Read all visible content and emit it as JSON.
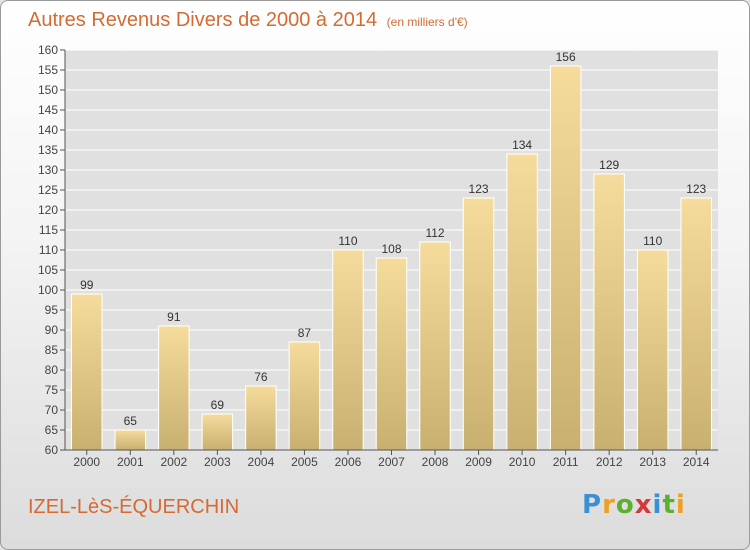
{
  "header": {
    "title": "Autres Revenus Divers de 2000 à 2014",
    "unit": "(en milliers d'€)"
  },
  "footer": {
    "commune": "IZEL-LèS-ÉQUERCHIN",
    "logo_text": "Proxiti",
    "logo_colors": [
      "#3a8fd6",
      "#f0a020",
      "#5cb030",
      "#d53a3a",
      "#3a8fd6",
      "#5cb030",
      "#f0a020"
    ]
  },
  "colors": {
    "bar_light": "#f6dc9c",
    "bar_dark": "#c8b070",
    "plot_bg": "#e0e0e0",
    "grid": "#ffffff",
    "accent": "#d56a33"
  },
  "chart_data": {
    "type": "bar",
    "title": "Autres Revenus Divers de 2000 à 2014",
    "subtitle": "(en milliers d'€)",
    "categories": [
      "2000",
      "2001",
      "2002",
      "2003",
      "2004",
      "2005",
      "2006",
      "2007",
      "2008",
      "2009",
      "2010",
      "2011",
      "2012",
      "2013",
      "2014"
    ],
    "values": [
      99,
      65,
      91,
      69,
      76,
      87,
      110,
      108,
      112,
      123,
      134,
      156,
      129,
      110,
      123
    ],
    "ylim": [
      60,
      160
    ],
    "ytick_step": 5,
    "grid": true,
    "xlabel": "",
    "ylabel": ""
  }
}
